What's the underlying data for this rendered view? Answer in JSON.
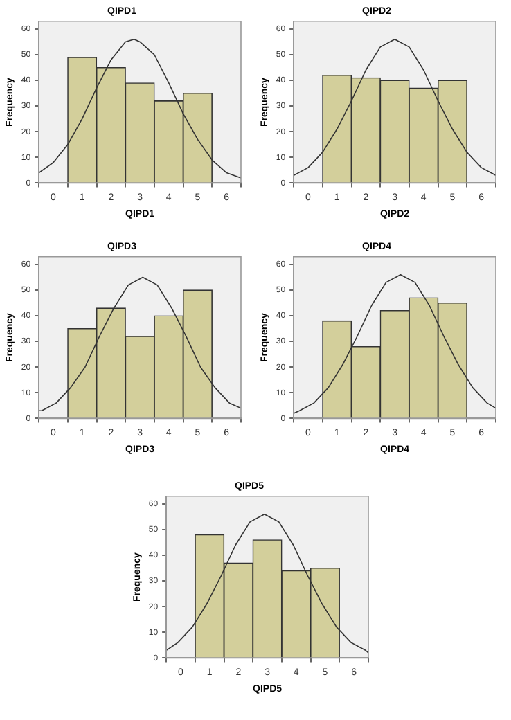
{
  "chart_data": [
    {
      "type": "histogram",
      "title": "QIPD1",
      "xlabel": "QIPD1",
      "ylabel": "Frequency",
      "bins": [
        0.5,
        1.5,
        2.5,
        3.5,
        4.5,
        5.5
      ],
      "values": [
        49,
        45,
        39,
        32,
        35
      ],
      "color": "#d3cf9b",
      "xlim": [
        -0.5,
        6.5
      ],
      "xticks": [
        0,
        1,
        2,
        3,
        4,
        5,
        6
      ],
      "ylim": [
        0,
        63
      ],
      "yticks": [
        0,
        10,
        20,
        30,
        40,
        50,
        60
      ],
      "series": [
        {
          "type": "line",
          "color": "#333333",
          "x": [
            -0.5,
            0,
            0.5,
            1,
            1.5,
            2,
            2.5,
            2.8,
            3,
            3.5,
            4,
            4.5,
            5,
            5.5,
            6,
            6.5
          ],
          "values": [
            4,
            8,
            15,
            25,
            37,
            48,
            55,
            56,
            55,
            50,
            39,
            27,
            17,
            9,
            4,
            2
          ]
        }
      ]
    },
    {
      "type": "histogram",
      "title": "QIPD2",
      "xlabel": "QIPD2",
      "ylabel": "Frequency",
      "bins": [
        0.5,
        1.5,
        2.5,
        3.5,
        4.5,
        5.5
      ],
      "values": [
        42,
        41,
        40,
        37,
        40
      ],
      "color": "#d3cf9b",
      "xlim": [
        -0.5,
        6.5
      ],
      "xticks": [
        0,
        1,
        2,
        3,
        4,
        5,
        6
      ],
      "ylim": [
        0,
        63
      ],
      "yticks": [
        0,
        10,
        20,
        30,
        40,
        50,
        60
      ],
      "series": [
        {
          "type": "line",
          "color": "#333333",
          "x": [
            -0.5,
            0,
            0.5,
            1,
            1.5,
            2,
            2.5,
            3,
            3.5,
            4,
            4.5,
            5,
            5.5,
            6,
            6.5
          ],
          "values": [
            3,
            6,
            12,
            21,
            32,
            44,
            53,
            56,
            53,
            44,
            32,
            21,
            12,
            6,
            3
          ]
        }
      ]
    },
    {
      "type": "histogram",
      "title": "QIPD3",
      "xlabel": "QIPD3",
      "ylabel": "Frequency",
      "bins": [
        0.5,
        1.5,
        2.5,
        3.5,
        4.5,
        5.5
      ],
      "values": [
        35,
        43,
        32,
        40,
        50
      ],
      "color": "#d3cf9b",
      "xlim": [
        -0.5,
        6.5
      ],
      "xticks": [
        0,
        1,
        2,
        3,
        4,
        5,
        6
      ],
      "ylim": [
        0,
        63
      ],
      "yticks": [
        0,
        10,
        20,
        30,
        40,
        50,
        60
      ],
      "series": [
        {
          "type": "line",
          "color": "#333333",
          "x": [
            -0.5,
            -0.4,
            0.1,
            0.6,
            1.1,
            1.6,
            2.1,
            2.6,
            3.1,
            3.6,
            4.1,
            4.6,
            5.1,
            5.6,
            6.1,
            6.5
          ],
          "values": [
            3,
            3,
            6,
            12,
            20,
            32,
            43,
            52,
            55,
            52,
            43,
            32,
            20,
            12,
            6,
            4
          ]
        }
      ]
    },
    {
      "type": "histogram",
      "title": "QIPD4",
      "xlabel": "QIPD4",
      "ylabel": "Frequency",
      "bins": [
        0.5,
        1.5,
        2.5,
        3.5,
        4.5,
        5.5
      ],
      "values": [
        38,
        28,
        42,
        47,
        45
      ],
      "color": "#d3cf9b",
      "xlim": [
        -0.5,
        6.5
      ],
      "xticks": [
        0,
        1,
        2,
        3,
        4,
        5,
        6
      ],
      "ylim": [
        0,
        63
      ],
      "yticks": [
        0,
        10,
        20,
        30,
        40,
        50,
        60
      ],
      "series": [
        {
          "type": "line",
          "color": "#333333",
          "x": [
            -0.5,
            -0.3,
            0.2,
            0.7,
            1.2,
            1.7,
            2.2,
            2.7,
            3.2,
            3.7,
            4.2,
            4.7,
            5.2,
            5.7,
            6.2,
            6.5
          ],
          "values": [
            2,
            3,
            6,
            12,
            21,
            32,
            44,
            53,
            56,
            53,
            44,
            32,
            21,
            12,
            6,
            4
          ]
        }
      ]
    },
    {
      "type": "histogram",
      "title": "QIPD5",
      "xlabel": "QIPD5",
      "ylabel": "Frequency",
      "bins": [
        0.5,
        1.5,
        2.5,
        3.5,
        4.5,
        5.5
      ],
      "values": [
        48,
        37,
        46,
        34,
        35
      ],
      "color": "#d3cf9b",
      "xlim": [
        -0.5,
        6.5
      ],
      "xticks": [
        0,
        1,
        2,
        3,
        4,
        5,
        6
      ],
      "ylim": [
        0,
        63
      ],
      "yticks": [
        0,
        10,
        20,
        30,
        40,
        50,
        60
      ],
      "series": [
        {
          "type": "line",
          "color": "#333333",
          "x": [
            -0.5,
            -0.1,
            0.4,
            0.9,
            1.4,
            1.9,
            2.4,
            2.9,
            3.4,
            3.9,
            4.4,
            4.9,
            5.4,
            5.9,
            6.4,
            6.5
          ],
          "values": [
            3,
            6,
            12,
            21,
            32,
            44,
            53,
            56,
            53,
            44,
            32,
            21,
            12,
            6,
            3,
            2
          ]
        }
      ]
    }
  ]
}
